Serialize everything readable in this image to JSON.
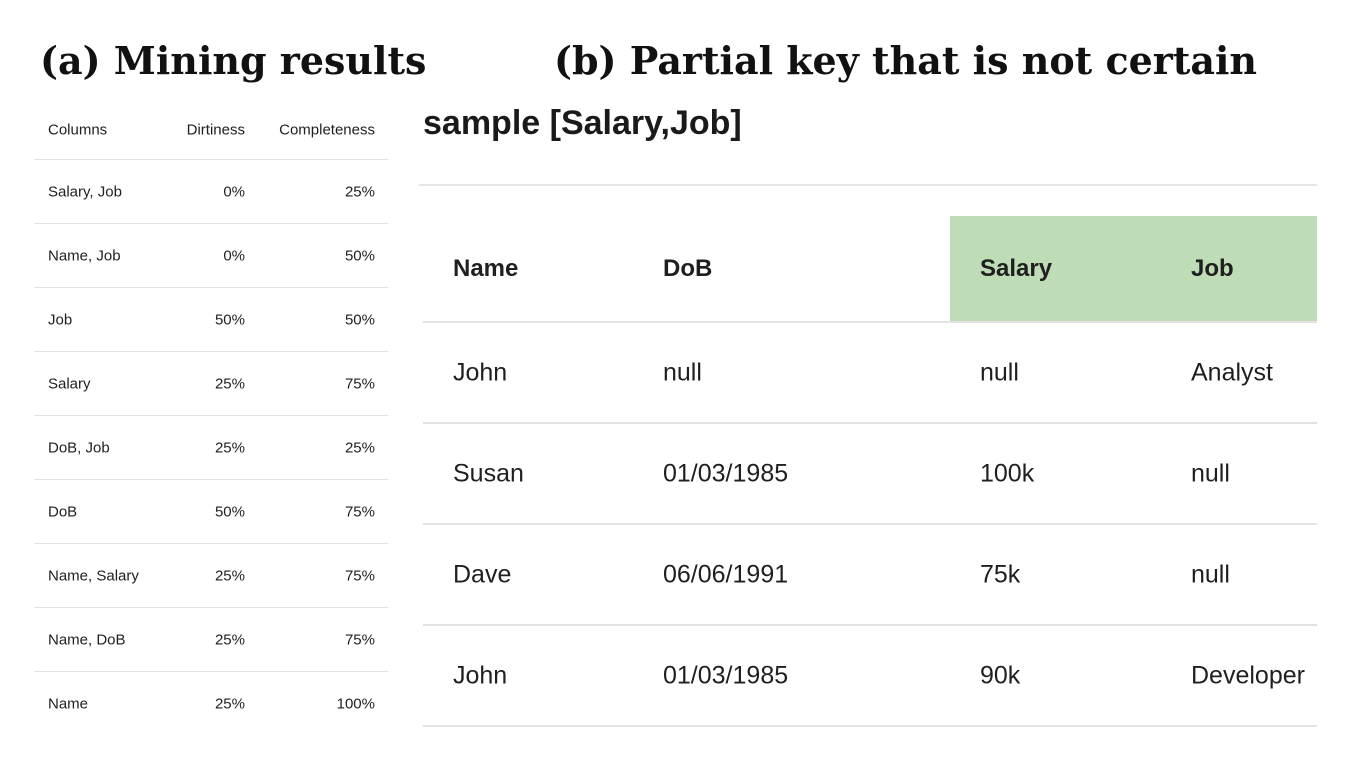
{
  "titles": {
    "a": "(a) Mining results",
    "b": "(b) Partial key that is not certain"
  },
  "mining_table": {
    "headers": [
      "Columns",
      "Dirtiness",
      "Completeness"
    ],
    "rows": [
      [
        "Salary, Job",
        "0%",
        "25%"
      ],
      [
        "Name, Job",
        "0%",
        "50%"
      ],
      [
        "Job",
        "50%",
        "50%"
      ],
      [
        "Salary",
        "25%",
        "75%"
      ],
      [
        "DoB, Job",
        "25%",
        "25%"
      ],
      [
        "DoB",
        "50%",
        "75%"
      ],
      [
        "Name, Salary",
        "25%",
        "75%"
      ],
      [
        "Name, DoB",
        "25%",
        "75%"
      ],
      [
        "Name",
        "25%",
        "100%"
      ]
    ]
  },
  "sample": {
    "title": "sample [Salary,Job]",
    "highlight_color": "#bedcb6",
    "headers": [
      "Name",
      "DoB",
      "Salary",
      "Job"
    ],
    "rows": [
      [
        "John",
        "null",
        "null",
        "Analyst"
      ],
      [
        "Susan",
        "01/03/1985",
        "100k",
        "null"
      ],
      [
        "Dave",
        "06/06/1991",
        "75k",
        "null"
      ],
      [
        "John",
        "01/03/1985",
        "90k",
        "Developer"
      ]
    ]
  }
}
